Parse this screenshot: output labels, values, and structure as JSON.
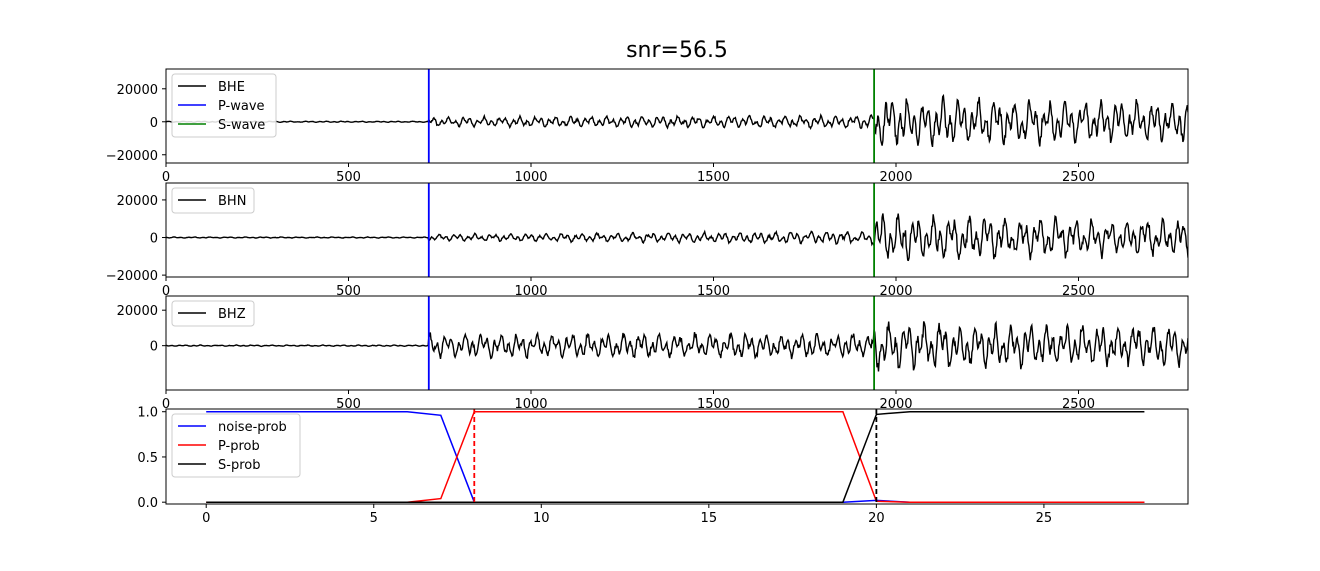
{
  "title": "snr=56.5",
  "chart_data": [
    {
      "type": "line",
      "component": "BHE",
      "xlim": [
        0,
        2800
      ],
      "ylim": [
        -25000,
        32000
      ],
      "xticks": [
        0,
        500,
        1000,
        1500,
        2000,
        2500
      ],
      "xtick_labels": [
        "0",
        "500",
        "1000",
        "1500",
        "2000",
        "2500"
      ],
      "yticks": [
        -20000,
        0,
        20000
      ],
      "ytick_labels": [
        "−20000",
        "0",
        "20000"
      ],
      "legend": [
        "BHE",
        "P-wave",
        "S-wave"
      ],
      "series": [
        {
          "name": "BHE",
          "color": "#000000",
          "noise_amp": 300,
          "p_amp": 2500,
          "mid_amp": 3500,
          "s_amp": 12000
        }
      ],
      "vlines": [
        {
          "name": "P-wave",
          "x": 720,
          "color": "#0000ff"
        },
        {
          "name": "S-wave",
          "x": 1940,
          "color": "#008000"
        }
      ]
    },
    {
      "type": "line",
      "component": "BHN",
      "xlim": [
        0,
        2800
      ],
      "ylim": [
        -21000,
        29000
      ],
      "xticks": [
        0,
        500,
        1000,
        1500,
        2000,
        2500
      ],
      "xtick_labels": [
        "0",
        "500",
        "1000",
        "1500",
        "2000",
        "2500"
      ],
      "yticks": [
        -20000,
        0,
        20000
      ],
      "ytick_labels": [
        "−20000",
        "0",
        "20000"
      ],
      "legend": [
        "BHN"
      ],
      "series": [
        {
          "name": "BHN",
          "color": "#000000",
          "noise_amp": 250,
          "p_amp": 1500,
          "mid_amp": 3000,
          "s_amp": 10000
        }
      ],
      "vlines": [
        {
          "x": 720,
          "color": "#0000ff"
        },
        {
          "x": 1940,
          "color": "#008000"
        }
      ]
    },
    {
      "type": "line",
      "component": "BHZ",
      "xlim": [
        0,
        2800
      ],
      "ylim": [
        -25000,
        28000
      ],
      "xticks": [
        0,
        500,
        1000,
        1500,
        2000,
        2500
      ],
      "xtick_labels": [
        "0",
        "500",
        "1000",
        "1500",
        "2000",
        "2500"
      ],
      "yticks": [
        0,
        20000
      ],
      "ytick_labels": [
        "0",
        "20000"
      ],
      "legend": [
        "BHZ"
      ],
      "series": [
        {
          "name": "BHZ",
          "color": "#000000",
          "noise_amp": 300,
          "p_amp": 6000,
          "mid_amp": 6000,
          "s_amp": 11000
        }
      ],
      "vlines": [
        {
          "x": 720,
          "color": "#0000ff"
        },
        {
          "x": 1940,
          "color": "#008000"
        }
      ]
    },
    {
      "type": "line",
      "xlim": [
        -1.2,
        29.3
      ],
      "ylim": [
        -0.02,
        1.03
      ],
      "xticks": [
        0,
        5,
        10,
        15,
        20,
        25
      ],
      "xtick_labels": [
        "0",
        "5",
        "10",
        "15",
        "20",
        "25"
      ],
      "yticks": [
        0.0,
        0.5,
        1.0
      ],
      "ytick_labels": [
        "0.0",
        "0.5",
        "1.0"
      ],
      "legend": [
        "noise-prob",
        "P-prob",
        "S-prob"
      ],
      "x": [
        0,
        1,
        2,
        3,
        4,
        5,
        6,
        7,
        8,
        9,
        10,
        11,
        12,
        13,
        14,
        15,
        16,
        17,
        18,
        19,
        20,
        21,
        22,
        23,
        24,
        25,
        26,
        27,
        28
      ],
      "series": [
        {
          "name": "noise-prob",
          "color": "#0000ff",
          "values": [
            1,
            1,
            1,
            1,
            1,
            1,
            1,
            0.96,
            0,
            0,
            0,
            0,
            0,
            0,
            0,
            0,
            0,
            0,
            0,
            0,
            0.02,
            0,
            0,
            0,
            0,
            0,
            0,
            0,
            0
          ]
        },
        {
          "name": "P-prob",
          "color": "#ff0000",
          "values": [
            0,
            0,
            0,
            0,
            0,
            0,
            0,
            0.04,
            1,
            1,
            1,
            1,
            1,
            1,
            1,
            1,
            1,
            1,
            1,
            1,
            0.01,
            0,
            0,
            0,
            0,
            0,
            0,
            0,
            0
          ]
        },
        {
          "name": "S-prob",
          "color": "#000000",
          "values": [
            0,
            0,
            0,
            0,
            0,
            0,
            0,
            0,
            0,
            0,
            0,
            0,
            0,
            0,
            0,
            0,
            0,
            0,
            0,
            0,
            0.97,
            1,
            1,
            1,
            1,
            1,
            1,
            1,
            1
          ]
        }
      ],
      "vlines": [
        {
          "x": 8,
          "color": "#ff0000",
          "dashed": true
        },
        {
          "x": 20,
          "color": "#000000",
          "dashed": true
        }
      ]
    }
  ]
}
